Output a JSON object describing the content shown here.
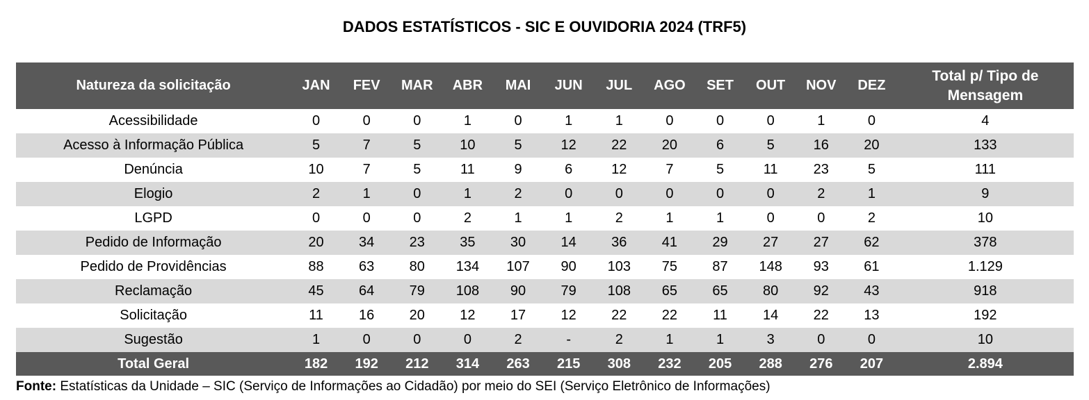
{
  "title": "DADOS ESTATÍSTICOS - SIC E OUVIDORIA 2024 (TRF5)",
  "table": {
    "header": {
      "label_column": "Natureza da solicitação",
      "months": [
        "JAN",
        "FEV",
        "MAR",
        "ABR",
        "MAI",
        "JUN",
        "JUL",
        "AGO",
        "SET",
        "OUT",
        "NOV",
        "DEZ"
      ],
      "total_column": "Total p/ Tipo de Mensagem"
    },
    "rows": [
      {
        "label": "Acessibilidade",
        "values": [
          "0",
          "0",
          "0",
          "1",
          "0",
          "1",
          "1",
          "0",
          "0",
          "0",
          "1",
          "0"
        ],
        "total": "4"
      },
      {
        "label": "Acesso à Informação Pública",
        "values": [
          "5",
          "7",
          "5",
          "10",
          "5",
          "12",
          "22",
          "20",
          "6",
          "5",
          "16",
          "20"
        ],
        "total": "133"
      },
      {
        "label": "Denúncia",
        "values": [
          "10",
          "7",
          "5",
          "11",
          "9",
          "6",
          "12",
          "7",
          "5",
          "11",
          "23",
          "5"
        ],
        "total": "111"
      },
      {
        "label": "Elogio",
        "values": [
          "2",
          "1",
          "0",
          "1",
          "2",
          "0",
          "0",
          "0",
          "0",
          "0",
          "2",
          "1"
        ],
        "total": "9"
      },
      {
        "label": "LGPD",
        "values": [
          "0",
          "0",
          "0",
          "2",
          "1",
          "1",
          "2",
          "1",
          "1",
          "0",
          "0",
          "2"
        ],
        "total": "10"
      },
      {
        "label": "Pedido de Informação",
        "values": [
          "20",
          "34",
          "23",
          "35",
          "30",
          "14",
          "36",
          "41",
          "29",
          "27",
          "27",
          "62"
        ],
        "total": "378"
      },
      {
        "label": "Pedido de Providências",
        "values": [
          "88",
          "63",
          "80",
          "134",
          "107",
          "90",
          "103",
          "75",
          "87",
          "148",
          "93",
          "61"
        ],
        "total": "1.129"
      },
      {
        "label": "Reclamação",
        "values": [
          "45",
          "64",
          "79",
          "108",
          "90",
          "79",
          "108",
          "65",
          "65",
          "80",
          "92",
          "43"
        ],
        "total": "918"
      },
      {
        "label": "Solicitação",
        "values": [
          "11",
          "16",
          "20",
          "12",
          "17",
          "12",
          "22",
          "22",
          "11",
          "14",
          "22",
          "13"
        ],
        "total": "192"
      },
      {
        "label": "Sugestão",
        "values": [
          "1",
          "0",
          "0",
          "0",
          "2",
          "-",
          "2",
          "1",
          "1",
          "3",
          "0",
          "0"
        ],
        "total": "10"
      }
    ],
    "total_row": {
      "label": "Total Geral",
      "values": [
        "182",
        "192",
        "212",
        "314",
        "263",
        "215",
        "308",
        "232",
        "205",
        "288",
        "276",
        "207"
      ],
      "total": "2.894"
    }
  },
  "footer": {
    "prefix": "Fonte:",
    "text": " Estatísticas da Unidade – SIC (Serviço de Informações ao Cidadão) por meio do SEI (Serviço Eletrônico de Informações)"
  },
  "colors": {
    "header_bg": "#595959",
    "stripe_bg": "#d9d9d9",
    "row_bg": "#ffffff",
    "header_text": "#ffffff",
    "body_text": "#000000"
  }
}
